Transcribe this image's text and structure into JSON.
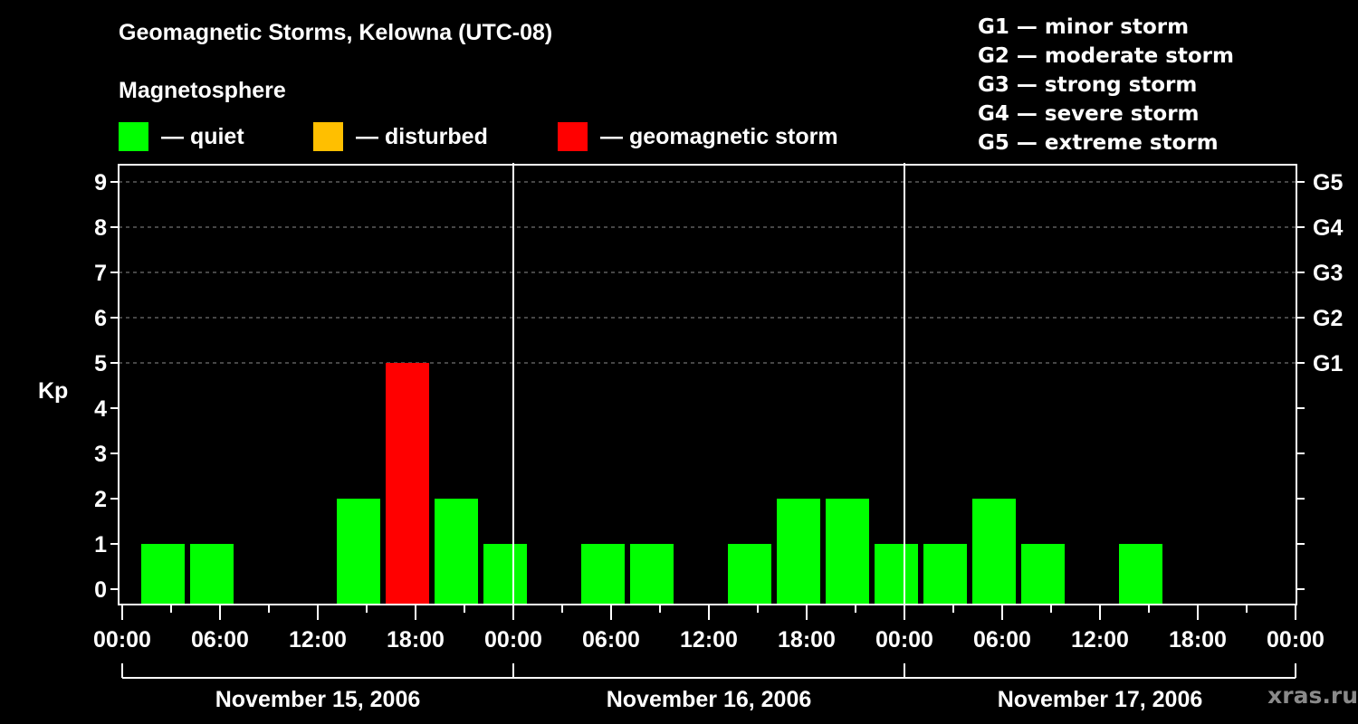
{
  "header": {
    "title": "Geomagnetic Storms, Kelowna (UTC-08)",
    "subtitle": "Magnetosphere"
  },
  "legend": [
    {
      "label": "— quiet",
      "color": "#00ff00"
    },
    {
      "label": "— disturbed",
      "color": "#ffbf00"
    },
    {
      "label": "— geomagnetic storm",
      "color": "#ff0000"
    }
  ],
  "g_legend": [
    "G1 — minor storm",
    "G2 — moderate storm",
    "G3 — strong storm",
    "G4 — severe storm",
    "G5 — extreme storm"
  ],
  "axes": {
    "ylabel": "Kp",
    "y_ticks": [
      "0",
      "1",
      "2",
      "3",
      "4",
      "5",
      "6",
      "7",
      "8",
      "9"
    ],
    "right_ticks": [
      {
        "kp": 5,
        "label": "G1"
      },
      {
        "kp": 6,
        "label": "G2"
      },
      {
        "kp": 7,
        "label": "G3"
      },
      {
        "kp": 8,
        "label": "G4"
      },
      {
        "kp": 9,
        "label": "G5"
      }
    ],
    "x_ticks": [
      "00:00",
      "06:00",
      "12:00",
      "18:00",
      "00:00",
      "06:00",
      "12:00",
      "18:00",
      "00:00",
      "06:00",
      "12:00",
      "18:00",
      "00:00"
    ],
    "days": [
      "November 15, 2006",
      "November 16, 2006",
      "November 17, 2006"
    ]
  },
  "watermark": "xras.ru",
  "chart_data": {
    "type": "bar",
    "title": "Geomagnetic Storms, Kelowna (UTC-08)",
    "subtitle": "Magnetosphere",
    "xlabel": "",
    "ylabel": "Kp",
    "ylim": [
      0,
      9
    ],
    "grid": true,
    "bin_hours": 3,
    "first_bin_start": "November 15, 2006 01:00",
    "categories": [
      "Nov15 01:00",
      "Nov15 04:00",
      "Nov15 07:00",
      "Nov15 10:00",
      "Nov15 13:00",
      "Nov15 16:00",
      "Nov15 19:00",
      "Nov15 22:00",
      "Nov16 01:00",
      "Nov16 04:00",
      "Nov16 07:00",
      "Nov16 10:00",
      "Nov16 13:00",
      "Nov16 16:00",
      "Nov16 19:00",
      "Nov16 22:00",
      "Nov17 01:00",
      "Nov17 04:00",
      "Nov17 07:00",
      "Nov17 10:00",
      "Nov17 13:00",
      "Nov17 16:00",
      "Nov17 19:00",
      "Nov17 22:00"
    ],
    "values": [
      1,
      1,
      null,
      null,
      2,
      5,
      2,
      1,
      null,
      1,
      1,
      null,
      1,
      2,
      2,
      1,
      1,
      2,
      1,
      null,
      1,
      null,
      null,
      null
    ],
    "colors": [
      "quiet",
      "quiet",
      null,
      null,
      "quiet",
      "storm",
      "quiet",
      "quiet",
      null,
      "quiet",
      "quiet",
      null,
      "quiet",
      "quiet",
      "quiet",
      "quiet",
      "quiet",
      "quiet",
      "quiet",
      null,
      "quiet",
      null,
      null,
      null
    ],
    "legend": [
      "quiet",
      "disturbed",
      "geomagnetic storm"
    ],
    "right_axis": {
      "G1": 5,
      "G2": 6,
      "G3": 7,
      "G4": 8,
      "G5": 9
    }
  }
}
